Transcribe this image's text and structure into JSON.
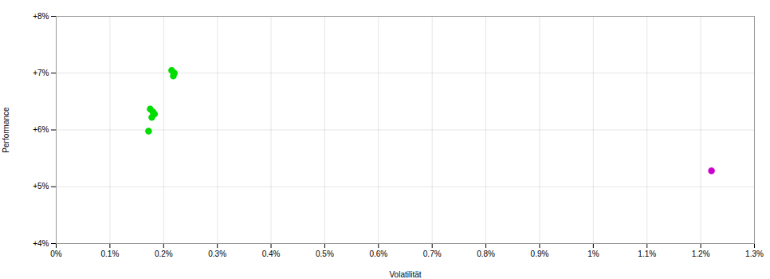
{
  "chart_data": {
    "type": "scatter",
    "xlabel": "Volatilität",
    "ylabel": "Performance",
    "xlim": [
      0,
      0.013
    ],
    "ylim": [
      0.04,
      0.08
    ],
    "xticks": [
      {
        "value": 0,
        "label": "0%"
      },
      {
        "value": 0.001,
        "label": "0.1%"
      },
      {
        "value": 0.002,
        "label": "0.2%"
      },
      {
        "value": 0.003,
        "label": "0.3%"
      },
      {
        "value": 0.004,
        "label": "0.4%"
      },
      {
        "value": 0.005,
        "label": "0.5%"
      },
      {
        "value": 0.006,
        "label": "0.6%"
      },
      {
        "value": 0.007,
        "label": "0.7%"
      },
      {
        "value": 0.008,
        "label": "0.8%"
      },
      {
        "value": 0.009,
        "label": "0.9%"
      },
      {
        "value": 0.01,
        "label": "1%"
      },
      {
        "value": 0.011,
        "label": "1.1%"
      },
      {
        "value": 0.012,
        "label": "1.2%"
      },
      {
        "value": 0.013,
        "label": "1.3%"
      }
    ],
    "yticks": [
      {
        "value": 0.04,
        "label": "+4%"
      },
      {
        "value": 0.05,
        "label": "+5%"
      },
      {
        "value": 0.06,
        "label": "+6%"
      },
      {
        "value": 0.07,
        "label": "+7%"
      },
      {
        "value": 0.08,
        "label": "+8%"
      }
    ],
    "grid": true,
    "series": [
      {
        "color": "#00dd00",
        "marker": "circle",
        "x": [
          0.00215,
          0.0022,
          0.00218,
          0.00175,
          0.0018,
          0.00183,
          0.00178,
          0.00172
        ],
        "values": [
          0.0705,
          0.07,
          0.0695,
          0.0637,
          0.0632,
          0.0628,
          0.0622,
          0.0598
        ]
      },
      {
        "color": "#cc00cc",
        "marker": "circle",
        "x": [
          0.0122
        ],
        "values": [
          0.0528
        ]
      }
    ]
  }
}
